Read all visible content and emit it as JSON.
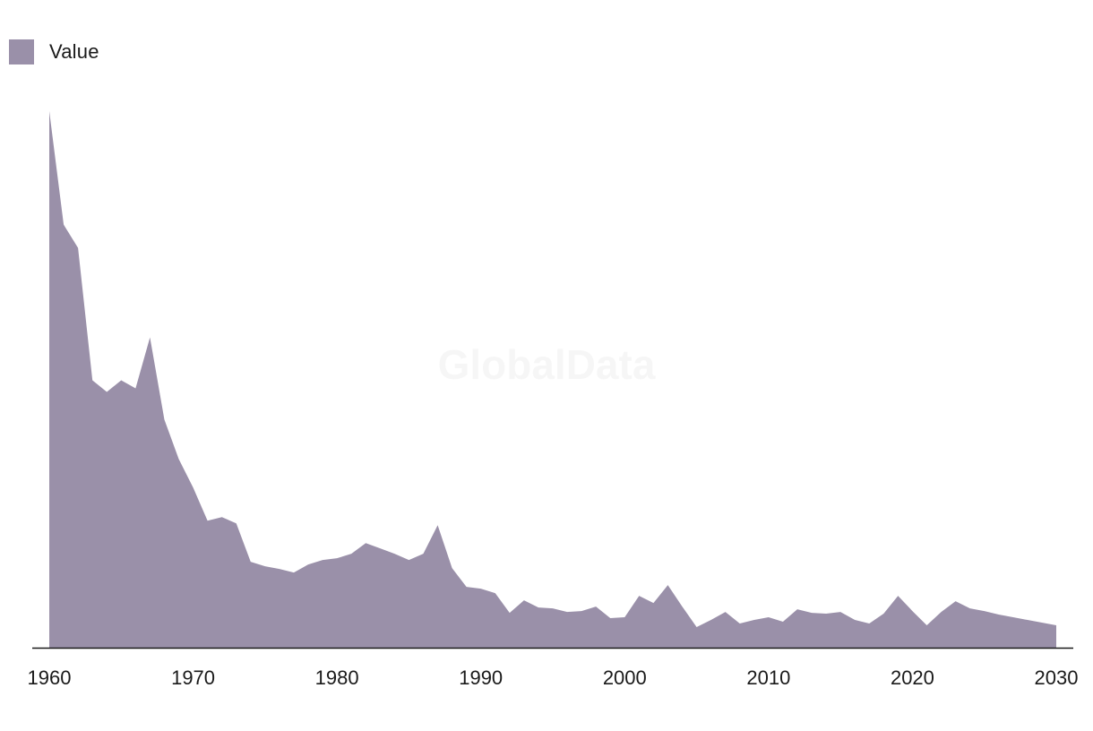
{
  "legend": {
    "label": "Value",
    "color": "#9a90a9"
  },
  "watermark": "GlobalData",
  "chart_data": {
    "type": "area",
    "title": "",
    "xlabel": "",
    "ylabel": "",
    "x_ticks": [
      1960,
      1970,
      1980,
      1990,
      2000,
      2010,
      2020,
      2030
    ],
    "xlim": [
      1960,
      2030
    ],
    "ylim": [
      0,
      600
    ],
    "grid": false,
    "legend_position": "top-left",
    "series": [
      {
        "name": "Value",
        "color": "#9a90a9",
        "x": [
          1960,
          1961,
          1962,
          1963,
          1964,
          1965,
          1966,
          1967,
          1968,
          1969,
          1970,
          1971,
          1972,
          1973,
          1974,
          1975,
          1976,
          1977,
          1978,
          1979,
          1980,
          1981,
          1982,
          1983,
          1984,
          1985,
          1986,
          1987,
          1988,
          1989,
          1990,
          1991,
          1992,
          1993,
          1994,
          1995,
          1996,
          1997,
          1998,
          1999,
          2000,
          2001,
          2002,
          2003,
          2004,
          2005,
          2006,
          2007,
          2008,
          2009,
          2010,
          2011,
          2012,
          2013,
          2014,
          2015,
          2016,
          2017,
          2018,
          2019,
          2020,
          2021,
          2022,
          2023,
          2024,
          2025,
          2026,
          2027,
          2028,
          2029,
          2030
        ],
        "values": [
          600,
          473,
          447,
          299,
          286,
          299,
          290,
          347,
          255,
          211,
          179,
          142,
          146,
          139,
          96,
          91,
          88,
          84,
          93,
          98,
          100,
          105,
          117,
          111,
          105,
          98,
          105,
          137,
          89,
          68,
          66,
          61,
          39,
          53,
          45,
          44,
          40,
          41,
          46,
          33,
          34,
          58,
          50,
          70,
          46,
          23,
          31,
          40,
          27,
          31,
          34,
          29,
          43,
          39,
          38,
          40,
          31,
          27,
          38,
          58,
          41,
          25,
          40,
          52,
          44,
          41,
          37,
          34,
          31,
          28,
          25
        ]
      }
    ]
  }
}
